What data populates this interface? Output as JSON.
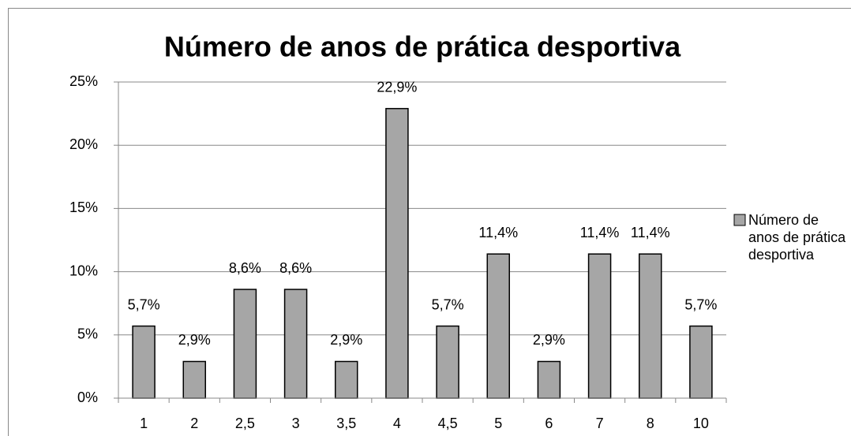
{
  "chart_data": {
    "type": "bar",
    "title": "Número de anos de prática desportiva",
    "categories": [
      "1",
      "2",
      "2,5",
      "3",
      "3,5",
      "4",
      "4,5",
      "5",
      "6",
      "7",
      "8",
      "10"
    ],
    "series": [
      {
        "name": "Número de anos de prática desportiva",
        "color": "#a6a6a6",
        "values": [
          5.7,
          2.9,
          8.6,
          8.6,
          2.9,
          22.9,
          5.7,
          11.4,
          2.9,
          11.4,
          11.4,
          5.7
        ],
        "value_labels": [
          "5,7%",
          "2,9%",
          "8,6%",
          "8,6%",
          "2,9%",
          "22,9%",
          "5,7%",
          "11,4%",
          "2,9%",
          "11,4%",
          "11,4%",
          "5,7%"
        ]
      }
    ],
    "ylim": [
      0,
      25
    ],
    "yticks": [
      {
        "value": 0,
        "label": "0%"
      },
      {
        "value": 5,
        "label": "5%"
      },
      {
        "value": 10,
        "label": "10%"
      },
      {
        "value": 15,
        "label": "15%"
      },
      {
        "value": 20,
        "label": "20%"
      },
      {
        "value": 25,
        "label": "25%"
      }
    ],
    "grid": true,
    "legend": "right"
  }
}
